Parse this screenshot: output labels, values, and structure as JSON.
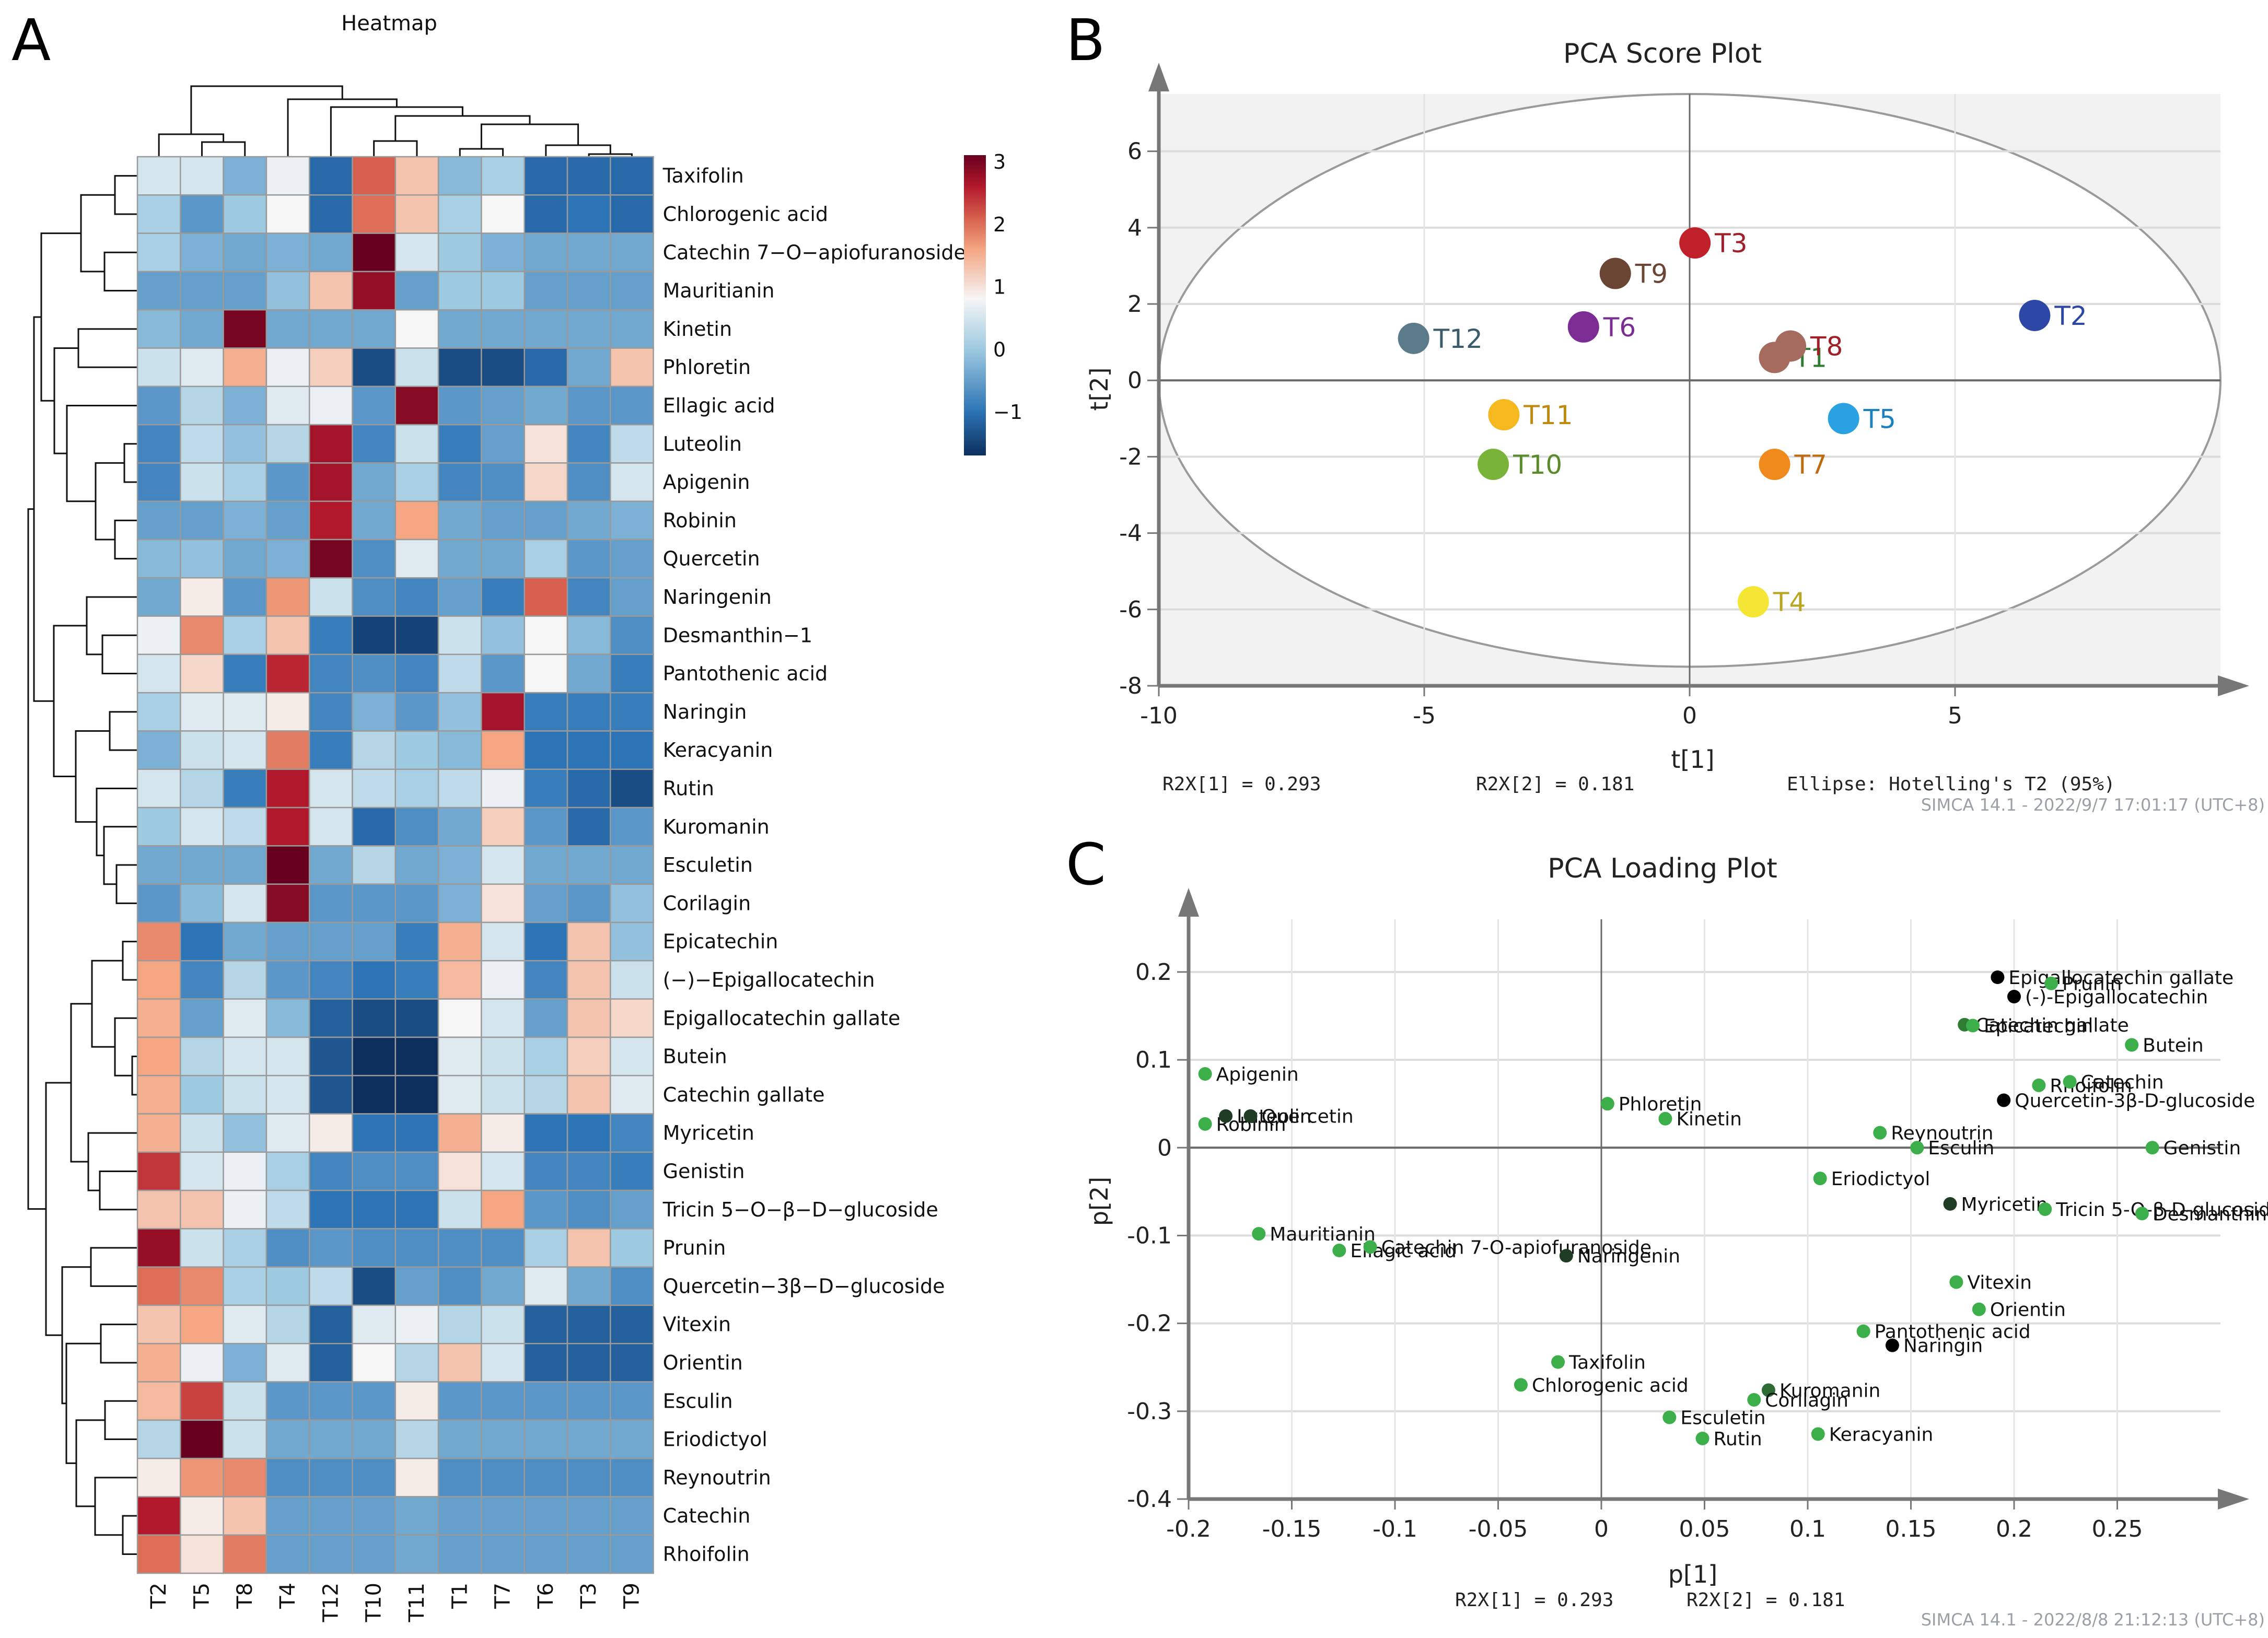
{
  "panels": {
    "a": "A",
    "b": "B",
    "c": "C"
  },
  "chart_data": [
    {
      "type": "heatmap",
      "title": "Heatmap",
      "columns": [
        "T2",
        "T5",
        "T8",
        "T4",
        "T12",
        "T10",
        "T11",
        "T1",
        "T7",
        "T6",
        "T3",
        "T9"
      ],
      "rows": [
        "Taxifolin",
        "Chlorogenic acid",
        "Catechin 7−O−apiofuranoside",
        "Mauritianin",
        "Kinetin",
        "Phloretin",
        "Ellagic acid",
        "Luteolin",
        "Apigenin",
        "Robinin",
        "Quercetin",
        "Naringenin",
        "Desmanthin−1",
        "Pantothenic acid",
        "Naringin",
        "Keracyanin",
        "Rutin",
        "Kuromanin",
        "Esculetin",
        "Corilagin",
        "Epicatechin",
        "(−)−Epigallocatechin",
        "Epigallocatechin gallate",
        "Butein",
        "Catechin gallate",
        "Myricetin",
        "Genistin",
        "Tricin 5−O−β−D−glucoside",
        "Prunin",
        "Quercetin−3β−D−glucoside",
        "Vitexin",
        "Orientin",
        "Esculin",
        "Eriodictyol",
        "Reynoutrin",
        "Catechin",
        "Rhoifolin"
      ],
      "values": [
        [
          0.5,
          0.5,
          -0.3,
          0.7,
          -1.1,
          2.1,
          1.3,
          -0.2,
          0.1,
          -1.1,
          -1.1,
          -1.1
        ],
        [
          0.1,
          -0.6,
          0.0,
          0.8,
          -1.1,
          2.0,
          1.3,
          0.1,
          0.8,
          -1.1,
          -1.0,
          -1.1
        ],
        [
          0.1,
          -0.3,
          -0.4,
          -0.3,
          -0.4,
          3.1,
          0.5,
          0.0,
          -0.3,
          -0.4,
          -0.4,
          -0.4
        ],
        [
          -0.5,
          -0.5,
          -0.5,
          -0.1,
          1.3,
          2.8,
          -0.5,
          0.0,
          0.0,
          -0.5,
          -0.5,
          -0.5
        ],
        [
          -0.2,
          -0.4,
          3.0,
          -0.4,
          -0.4,
          -0.4,
          0.8,
          -0.4,
          -0.4,
          -0.4,
          -0.4,
          -0.4
        ],
        [
          0.4,
          0.6,
          1.5,
          0.7,
          1.2,
          -1.4,
          0.4,
          -1.4,
          -1.4,
          -1.1,
          -0.4,
          1.3
        ],
        [
          -0.6,
          0.2,
          -0.3,
          0.6,
          0.7,
          -0.6,
          2.9,
          -0.6,
          -0.5,
          -0.4,
          -0.6,
          -0.6
        ],
        [
          -0.8,
          0.3,
          -0.1,
          0.2,
          2.7,
          -0.8,
          0.4,
          -0.9,
          -0.5,
          1.0,
          -0.8,
          0.3
        ],
        [
          -0.8,
          0.4,
          0.1,
          -0.6,
          2.7,
          -0.4,
          0.1,
          -0.8,
          -0.7,
          1.1,
          -0.7,
          0.5
        ],
        [
          -0.5,
          -0.5,
          -0.3,
          -0.5,
          2.6,
          -0.4,
          1.6,
          -0.4,
          -0.5,
          -0.5,
          -0.4,
          -0.3
        ],
        [
          -0.2,
          -0.1,
          -0.4,
          -0.3,
          3.0,
          -0.7,
          0.6,
          -0.4,
          -0.4,
          0.1,
          -0.6,
          -0.5
        ],
        [
          -0.4,
          0.9,
          -0.6,
          1.7,
          0.4,
          -0.7,
          -0.8,
          -0.5,
          -0.9,
          2.1,
          -0.8,
          -0.5
        ],
        [
          0.7,
          1.8,
          0.1,
          1.3,
          -0.9,
          -1.5,
          -1.5,
          0.4,
          -0.1,
          0.8,
          -0.2,
          -0.7
        ],
        [
          0.5,
          1.1,
          -0.9,
          2.5,
          -0.8,
          -0.7,
          -0.8,
          0.3,
          -0.6,
          0.8,
          -0.4,
          -0.9
        ],
        [
          0.1,
          0.6,
          0.6,
          0.9,
          -0.8,
          -0.3,
          -0.6,
          -0.1,
          2.7,
          -0.9,
          -0.9,
          -0.9
        ],
        [
          -0.3,
          0.4,
          0.5,
          1.9,
          -0.9,
          0.2,
          0.0,
          -0.2,
          1.6,
          -1.0,
          -1.0,
          -1.0
        ],
        [
          0.5,
          0.2,
          -0.9,
          2.6,
          0.5,
          0.3,
          0.1,
          0.3,
          0.7,
          -0.9,
          -1.1,
          -1.4
        ],
        [
          0.0,
          0.5,
          0.3,
          2.6,
          0.5,
          -1.1,
          -0.7,
          -0.4,
          1.2,
          -0.6,
          -1.1,
          -0.6
        ],
        [
          -0.4,
          -0.4,
          -0.4,
          3.1,
          -0.4,
          0.2,
          -0.4,
          -0.3,
          0.5,
          -0.4,
          -0.4,
          -0.4
        ],
        [
          -0.6,
          -0.2,
          0.5,
          2.9,
          -0.6,
          -0.6,
          -0.6,
          -0.3,
          1.0,
          -0.5,
          -0.6,
          -0.1
        ],
        [
          1.8,
          -1.0,
          -0.4,
          -0.5,
          -0.5,
          -0.5,
          -0.9,
          1.5,
          0.5,
          -1.0,
          1.3,
          -0.1
        ],
        [
          1.6,
          -0.8,
          0.2,
          -0.6,
          -0.8,
          -1.0,
          -0.9,
          1.4,
          0.7,
          -0.8,
          1.3,
          0.4
        ],
        [
          1.5,
          -0.5,
          0.6,
          -0.2,
          -1.2,
          -1.4,
          -1.4,
          0.8,
          0.5,
          -0.5,
          1.3,
          1.1
        ],
        [
          1.6,
          0.2,
          0.5,
          0.5,
          -1.3,
          -1.8,
          -1.8,
          0.6,
          0.4,
          0.1,
          1.2,
          0.5
        ],
        [
          1.5,
          0.0,
          0.4,
          0.5,
          -1.3,
          -1.8,
          -1.8,
          0.6,
          0.4,
          0.2,
          1.3,
          0.6
        ],
        [
          1.5,
          0.4,
          -0.1,
          0.6,
          0.9,
          -1.0,
          -1.0,
          1.5,
          0.9,
          -1.0,
          -1.0,
          -0.8
        ],
        [
          2.4,
          0.5,
          0.7,
          0.1,
          -0.8,
          -0.7,
          -0.7,
          1.0,
          0.5,
          -0.8,
          -0.8,
          -0.9
        ],
        [
          1.3,
          1.3,
          0.7,
          0.3,
          -1.0,
          -1.0,
          -1.0,
          0.4,
          1.6,
          -0.6,
          -0.7,
          -0.5
        ],
        [
          2.8,
          0.4,
          0.1,
          -0.7,
          -0.6,
          -0.7,
          -0.7,
          -0.7,
          -0.7,
          0.1,
          1.3,
          0.0
        ],
        [
          2.0,
          1.8,
          0.1,
          0.0,
          0.3,
          -1.4,
          -0.5,
          -0.7,
          -0.4,
          0.6,
          -0.4,
          -0.7
        ],
        [
          1.3,
          1.6,
          0.6,
          0.2,
          -1.2,
          0.6,
          0.7,
          0.2,
          0.4,
          -1.2,
          -1.2,
          -1.2
        ],
        [
          1.5,
          0.7,
          -0.3,
          0.6,
          -1.2,
          0.8,
          0.2,
          1.3,
          0.5,
          -1.2,
          -1.2,
          -1.2
        ],
        [
          1.4,
          2.3,
          0.4,
          -0.6,
          -0.6,
          -0.6,
          0.9,
          -0.6,
          -0.6,
          -0.6,
          -0.6,
          -0.6
        ],
        [
          0.2,
          3.1,
          0.4,
          -0.4,
          -0.4,
          -0.4,
          0.2,
          -0.4,
          -0.4,
          -0.4,
          -0.4,
          -0.4
        ],
        [
          0.9,
          1.7,
          1.8,
          -0.7,
          -0.7,
          -0.7,
          0.9,
          -0.7,
          -0.7,
          -0.7,
          -0.7,
          -0.7
        ],
        [
          2.6,
          0.9,
          1.3,
          -0.5,
          -0.5,
          -0.5,
          -0.4,
          -0.5,
          -0.5,
          -0.5,
          -0.5,
          -0.5
        ],
        [
          2.0,
          1.0,
          1.9,
          -0.5,
          -0.5,
          -0.5,
          -0.4,
          -0.5,
          -0.5,
          -0.5,
          -0.5,
          -0.5
        ]
      ],
      "colorbar": {
        "min": -1.7,
        "max": 3.1,
        "ticks": [
          -1,
          0,
          1,
          2,
          3
        ],
        "tick_labels": [
          "−1",
          "0",
          "1",
          "2",
          "3"
        ],
        "colors": [
          "#0d2f5e",
          "#2c74b5",
          "#9ecae1",
          "#f5f5f5",
          "#f4a582",
          "#d6604d",
          "#b2182b",
          "#67001f"
        ]
      },
      "row_dendrogram": true,
      "column_dendrogram": true
    },
    {
      "type": "scatter",
      "title": "PCA Score Plot",
      "xlabel": "t[1]",
      "ylabel": "t[2]",
      "xlim": [
        -10,
        10
      ],
      "ylim": [
        -8,
        7.5
      ],
      "xticks": [
        -10,
        -5,
        0,
        5
      ],
      "yticks": [
        -8,
        -6,
        -4,
        -2,
        0,
        2,
        4,
        6
      ],
      "grid": true,
      "ellipse": {
        "label": "Ellipse: Hotelling's T2 (95%)",
        "rx": 10.0,
        "ry": 7.5
      },
      "points": [
        {
          "label": "T1",
          "x": 1.6,
          "y": 0.6,
          "color": "#a56b5e",
          "label_color": "#2e7d32"
        },
        {
          "label": "T2",
          "x": 6.5,
          "y": 1.7,
          "color": "#2d47a6",
          "label_color": "#2d47a6"
        },
        {
          "label": "T3",
          "x": 0.1,
          "y": 3.6,
          "color": "#c0202a",
          "label_color": "#a0202a"
        },
        {
          "label": "T4",
          "x": 1.2,
          "y": -5.8,
          "color": "#f5e636",
          "label_color": "#b8a520"
        },
        {
          "label": "T5",
          "x": 2.9,
          "y": -1.0,
          "color": "#2aa1e0",
          "label_color": "#1a80c0"
        },
        {
          "label": "T6",
          "x": -2.0,
          "y": 1.4,
          "color": "#7b2d94",
          "label_color": "#7b2d94"
        },
        {
          "label": "T7",
          "x": 1.6,
          "y": -2.2,
          "color": "#f08a1c",
          "label_color": "#c06a10"
        },
        {
          "label": "T8",
          "x": 1.9,
          "y": 0.9,
          "color": "#a56b5e",
          "label_color": "#a0202a"
        },
        {
          "label": "T9",
          "x": -1.4,
          "y": 2.8,
          "color": "#6b4533",
          "label_color": "#6b4533"
        },
        {
          "label": "T10",
          "x": -3.7,
          "y": -2.2,
          "color": "#7ab33a",
          "label_color": "#5a8a2a"
        },
        {
          "label": "T11",
          "x": -3.5,
          "y": -0.9,
          "color": "#f5b81e",
          "label_color": "#c08a10"
        },
        {
          "label": "T12",
          "x": -5.2,
          "y": 1.1,
          "color": "#5b7a8a",
          "label_color": "#3b5a6a"
        }
      ],
      "footer": {
        "r2x1": "R2X[1] = 0.293",
        "r2x2": "R2X[2] = 0.181",
        "ellipse": "Ellipse: Hotelling's T2 (95%)",
        "software": "SIMCA 14.1 - 2022/9/7 17:01:17 (UTC+8)"
      }
    },
    {
      "type": "scatter",
      "title": "PCA Loading Plot",
      "xlabel": "p[1]",
      "ylabel": "p[2]",
      "xlim": [
        -0.2,
        0.3
      ],
      "ylim": [
        -0.4,
        0.26
      ],
      "xticks": [
        -0.2,
        -0.15,
        -0.1,
        -0.05,
        0,
        0.05,
        0.1,
        0.15,
        0.2,
        0.25
      ],
      "xtick_labels": [
        "-0.2",
        "-0.15",
        "-0.1",
        "-0.05",
        "0",
        "0.05",
        "0.1",
        "0.15",
        "0.2",
        "0.25"
      ],
      "yticks": [
        -0.4,
        -0.3,
        -0.2,
        -0.1,
        0,
        0.1,
        0.2
      ],
      "ytick_labels": [
        "-0.4",
        "-0.3",
        "-0.2",
        "-0.1",
        "0",
        "0.1",
        "0.2"
      ],
      "grid": true,
      "points": [
        {
          "label": "Apigenin",
          "x": -0.192,
          "y": 0.084,
          "color": "#3cae4a"
        },
        {
          "label": "Robinin",
          "x": -0.192,
          "y": 0.027,
          "color": "#3cae4a"
        },
        {
          "label": "Luteolin",
          "x": -0.182,
          "y": 0.036,
          "color": "#1f3d25"
        },
        {
          "label": "Quercetin",
          "x": -0.17,
          "y": 0.036,
          "color": "#1f3d25"
        },
        {
          "label": "Mauritianin",
          "x": -0.166,
          "y": -0.098,
          "color": "#3cae4a"
        },
        {
          "label": "Ellagic acid",
          "x": -0.127,
          "y": -0.117,
          "color": "#3cae4a"
        },
        {
          "label": "Catechin 7-O-apiofuranoside",
          "x": -0.112,
          "y": -0.113,
          "color": "#3cae4a"
        },
        {
          "label": "Naringenin",
          "x": -0.017,
          "y": -0.123,
          "color": "#1f3d25"
        },
        {
          "label": "Phloretin",
          "x": 0.003,
          "y": 0.05,
          "color": "#3cae4a"
        },
        {
          "label": "Kinetin",
          "x": 0.031,
          "y": 0.033,
          "color": "#3cae4a"
        },
        {
          "label": "Quercetin-3β-D-glucoside",
          "x": 0.195,
          "y": 0.054,
          "color": "#000000"
        },
        {
          "label": "Reynoutrin",
          "x": 0.135,
          "y": 0.017,
          "color": "#3cae4a"
        },
        {
          "label": "Esculin",
          "x": 0.153,
          "y": 0.0,
          "color": "#3cae4a"
        },
        {
          "label": "Genistin",
          "x": 0.267,
          "y": 0.0,
          "color": "#3cae4a"
        },
        {
          "label": "Eriodictyol",
          "x": 0.106,
          "y": -0.035,
          "color": "#3cae4a"
        },
        {
          "label": "Myricetin",
          "x": 0.169,
          "y": -0.064,
          "color": "#1f3d25"
        },
        {
          "label": "Tricin 5-O-β-D-glucoside",
          "x": 0.215,
          "y": -0.07,
          "color": "#3cae4a"
        },
        {
          "label": "Desmanthin-1",
          "x": 0.262,
          "y": -0.075,
          "color": "#3cae4a"
        },
        {
          "label": "Epigallocatechin gallate",
          "x": 0.192,
          "y": 0.194,
          "color": "#000000"
        },
        {
          "label": "Prunin",
          "x": 0.218,
          "y": 0.187,
          "color": "#3cae4a"
        },
        {
          "label": "(-)-Epigallocatechin",
          "x": 0.2,
          "y": 0.172,
          "color": "#000000"
        },
        {
          "label": "Catechin gallate",
          "x": 0.176,
          "y": 0.14,
          "color": "#2e7d32"
        },
        {
          "label": "Epicatechin",
          "x": 0.18,
          "y": 0.139,
          "color": "#3cae4a"
        },
        {
          "label": "Butein",
          "x": 0.257,
          "y": 0.117,
          "color": "#3cae4a"
        },
        {
          "label": "Rhoifolin",
          "x": 0.212,
          "y": 0.071,
          "color": "#3cae4a"
        },
        {
          "label": "Catechin",
          "x": 0.227,
          "y": 0.075,
          "color": "#3cae4a"
        },
        {
          "label": "Vitexin",
          "x": 0.172,
          "y": -0.153,
          "color": "#3cae4a"
        },
        {
          "label": "Orientin",
          "x": 0.183,
          "y": -0.184,
          "color": "#3cae4a"
        },
        {
          "label": "Pantothenic acid",
          "x": 0.127,
          "y": -0.209,
          "color": "#3cae4a"
        },
        {
          "label": "Naringin",
          "x": 0.141,
          "y": -0.225,
          "color": "#000000"
        },
        {
          "label": "Taxifolin",
          "x": -0.021,
          "y": -0.244,
          "color": "#3cae4a"
        },
        {
          "label": "Chlorogenic acid",
          "x": -0.039,
          "y": -0.27,
          "color": "#3cae4a"
        },
        {
          "label": "Kuromanin",
          "x": 0.081,
          "y": -0.276,
          "color": "#2e6b35"
        },
        {
          "label": "Corilagin",
          "x": 0.074,
          "y": -0.287,
          "color": "#3cae4a"
        },
        {
          "label": "Esculetin",
          "x": 0.033,
          "y": -0.307,
          "color": "#3cae4a"
        },
        {
          "label": "Rutin",
          "x": 0.049,
          "y": -0.331,
          "color": "#3cae4a"
        },
        {
          "label": "Keracyanin",
          "x": 0.105,
          "y": -0.326,
          "color": "#3cae4a"
        }
      ],
      "footer": {
        "r2x1": "R2X[1] = 0.293",
        "r2x2": "R2X[2] = 0.181",
        "software": "SIMCA 14.1 - 2022/8/8 21:12:13 (UTC+8)"
      }
    }
  ]
}
